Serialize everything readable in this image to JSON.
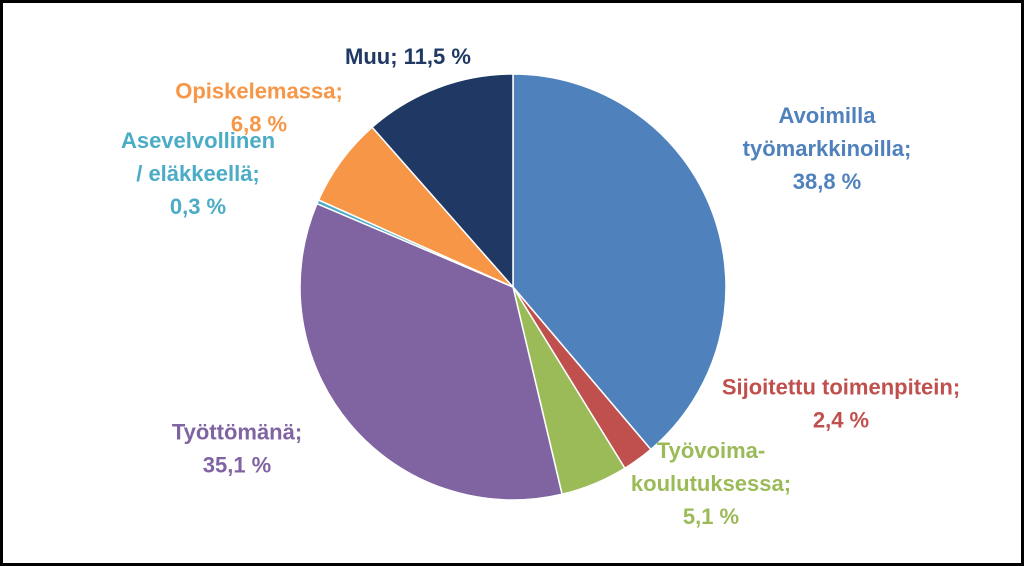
{
  "chart_data": {
    "type": "pie",
    "title": "",
    "slices": [
      {
        "category": "Avoimilla työmarkkinoilla",
        "value": 38.8,
        "value_text": "38,8 %",
        "color": "#4F81BD",
        "label_lines": [
          "Avoimilla",
          "työmarkkinoilla;",
          "38,8 %"
        ]
      },
      {
        "category": "Sijoitettu toimenpitein",
        "value": 2.4,
        "value_text": "2,4 %",
        "color": "#C0504D",
        "label_lines": [
          "Sijoitettu toimenpitein;",
          "2,4 %"
        ]
      },
      {
        "category": "Työvoimakoulutuksessa",
        "value": 5.1,
        "value_text": "5,1 %",
        "color": "#9BBB59",
        "label_lines": [
          "Työvoima-",
          "koulutuksessa;",
          "5,1 %"
        ]
      },
      {
        "category": "Työttömänä",
        "value": 35.1,
        "value_text": "35,1 %",
        "color": "#8064A2",
        "label_lines": [
          "Työttömänä;",
          "35,1 %"
        ]
      },
      {
        "category": "Asevelvollinen / eläkkeellä",
        "value": 0.3,
        "value_text": "0,3 %",
        "color": "#4BACC6",
        "label_lines": [
          "Asevelvollinen",
          "/ eläkkeellä;",
          "0,3 %"
        ]
      },
      {
        "category": "Opiskelemassa",
        "value": 6.8,
        "value_text": "6,8 %",
        "color": "#F79646",
        "label_lines": [
          "Opiskelemassa;",
          "6,8 %"
        ]
      },
      {
        "category": "Muu",
        "value": 11.5,
        "value_text": "11,5 %",
        "color": "#1F3864",
        "label_lines": [
          "Muu; 11,5 %"
        ]
      }
    ]
  }
}
